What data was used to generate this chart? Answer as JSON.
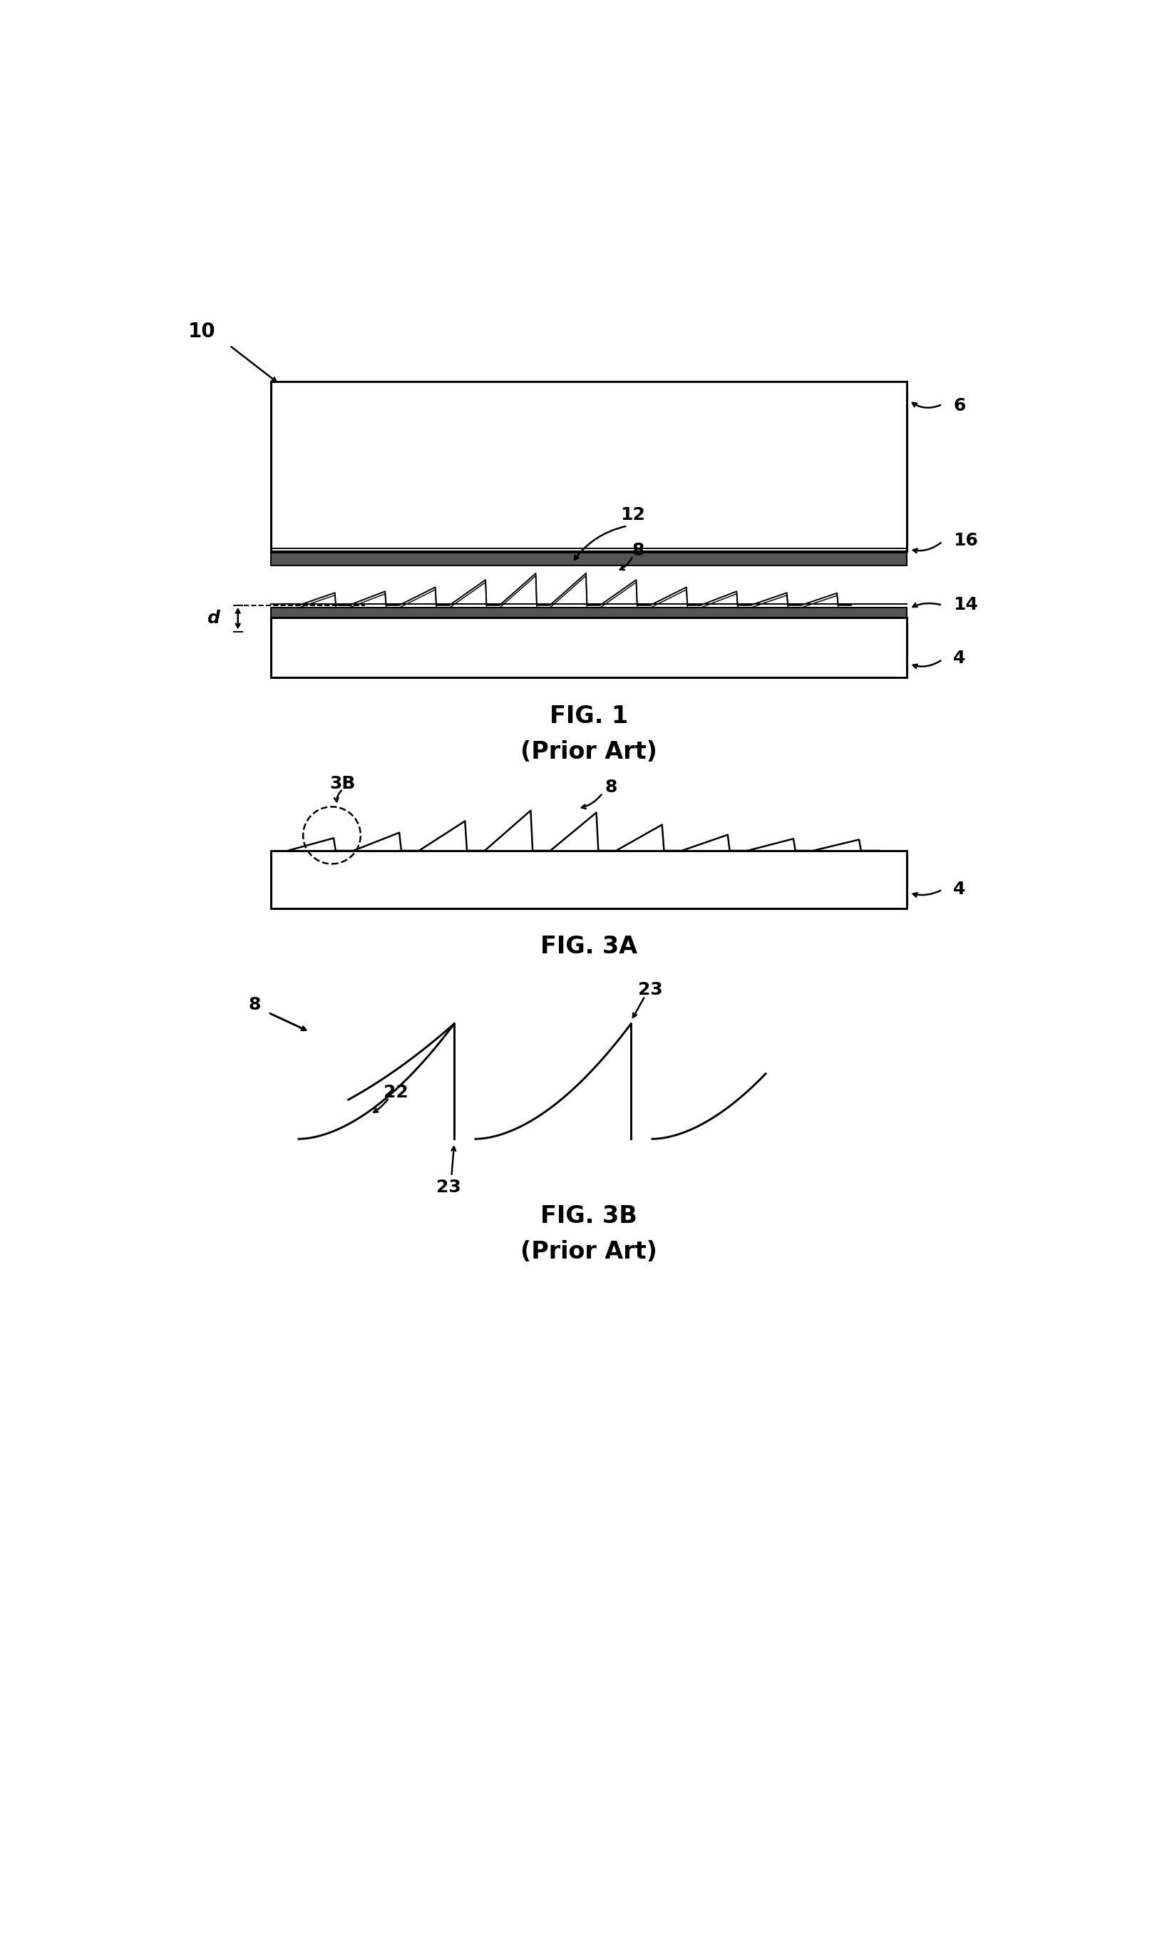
{
  "bg_color": "#ffffff",
  "line_color": "#000000",
  "fig1_title": "FIG. 1",
  "fig1_subtitle": "(Prior Art)",
  "fig3a_title": "FIG. 3A",
  "fig3b_title": "FIG. 3B",
  "fig3b_subtitle": "(Prior Art)",
  "fig_width": 16.16,
  "fig_height": 27.29,
  "lw_thick": 2.2,
  "lw_med": 1.8,
  "lw_thin": 1.4,
  "label_fontsize": 18,
  "caption_fontsize": 24
}
